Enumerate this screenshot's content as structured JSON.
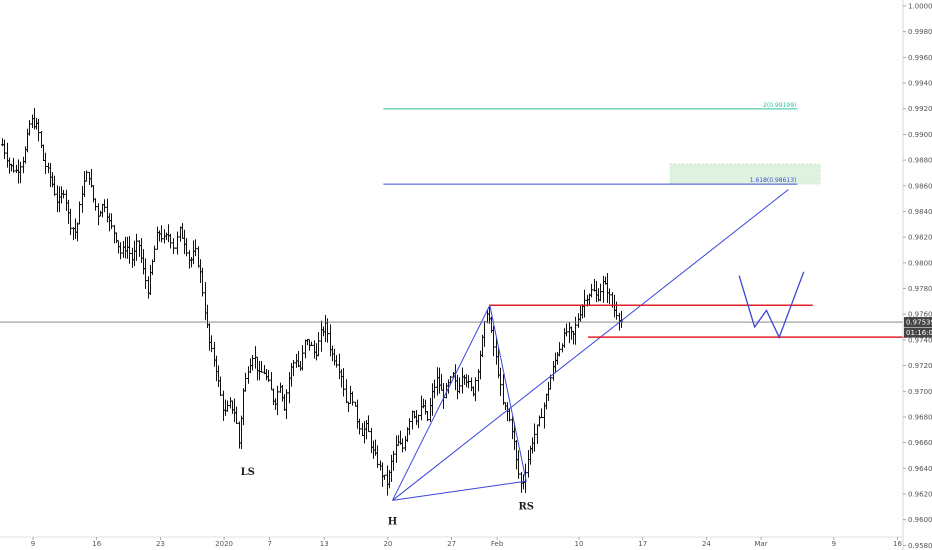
{
  "chart_data": {
    "type": "ohlc",
    "y_axis": {
      "range": [
        0.9573,
        1.0004
      ],
      "ticks": [
        {
          "value": 1.0,
          "label": "1.00000"
        },
        {
          "value": 0.998,
          "label": "0.99800"
        },
        {
          "value": 0.996,
          "label": "0.99600"
        },
        {
          "value": 0.994,
          "label": "0.99400"
        },
        {
          "value": 0.992,
          "label": "0.99200"
        },
        {
          "value": 0.99,
          "label": "0.99000"
        },
        {
          "value": 0.988,
          "label": "0.98800"
        },
        {
          "value": 0.986,
          "label": "0.98600"
        },
        {
          "value": 0.984,
          "label": "0.98400"
        },
        {
          "value": 0.982,
          "label": "0.98200"
        },
        {
          "value": 0.98,
          "label": "0.98000"
        },
        {
          "value": 0.978,
          "label": "0.97800"
        },
        {
          "value": 0.976,
          "label": "0.97600"
        },
        {
          "value": 0.974,
          "label": "0.97400"
        },
        {
          "value": 0.972,
          "label": "0.97200"
        },
        {
          "value": 0.97,
          "label": "0.97000"
        },
        {
          "value": 0.968,
          "label": "0.96800"
        },
        {
          "value": 0.966,
          "label": "0.96600"
        },
        {
          "value": 0.964,
          "label": "0.96400"
        },
        {
          "value": 0.962,
          "label": "0.96200"
        },
        {
          "value": 0.96,
          "label": "0.96000"
        },
        {
          "value": 0.958,
          "label": "0.95800"
        }
      ]
    },
    "x_axis": {
      "ticks": [
        {
          "label": "9",
          "t": 0
        },
        {
          "label": "16",
          "t": 7
        },
        {
          "label": "23",
          "t": 14
        },
        {
          "label": "2020",
          "t": 21
        },
        {
          "label": "7",
          "t": 26
        },
        {
          "label": "13",
          "t": 32
        },
        {
          "label": "20",
          "t": 39
        },
        {
          "label": "27",
          "t": 46
        },
        {
          "label": "Feb",
          "t": 51
        },
        {
          "label": "10",
          "t": 60
        },
        {
          "label": "17",
          "t": 67
        },
        {
          "label": "24",
          "t": 74
        },
        {
          "label": "Mar",
          "t": 80
        },
        {
          "label": "9",
          "t": 88
        },
        {
          "label": "16",
          "t": 95
        }
      ]
    },
    "price_path": [
      [
        -3.4,
        0.9892
      ],
      [
        -2.6,
        0.9876
      ],
      [
        -1.8,
        0.9871
      ],
      [
        -1.0,
        0.9883
      ],
      [
        -0.3,
        0.9912
      ],
      [
        0.5,
        0.9905
      ],
      [
        1.1,
        0.988
      ],
      [
        2.0,
        0.9864
      ],
      [
        2.7,
        0.9846
      ],
      [
        3.4,
        0.9857
      ],
      [
        4.0,
        0.9831
      ],
      [
        4.7,
        0.9823
      ],
      [
        5.4,
        0.9858
      ],
      [
        6.0,
        0.9872
      ],
      [
        6.5,
        0.9852
      ],
      [
        7.1,
        0.9838
      ],
      [
        7.8,
        0.9847
      ],
      [
        8.4,
        0.983
      ],
      [
        9.0,
        0.9822
      ],
      [
        9.6,
        0.9808
      ],
      [
        10.3,
        0.9813
      ],
      [
        10.9,
        0.9802
      ],
      [
        11.5,
        0.9818
      ],
      [
        12.0,
        0.9797
      ],
      [
        12.6,
        0.9779
      ],
      [
        13.1,
        0.98
      ],
      [
        13.7,
        0.9825
      ],
      [
        14.3,
        0.9818
      ],
      [
        14.9,
        0.9822
      ],
      [
        15.5,
        0.981
      ],
      [
        16.1,
        0.9825
      ],
      [
        16.7,
        0.9815
      ],
      [
        17.2,
        0.98
      ],
      [
        17.8,
        0.981
      ],
      [
        18.4,
        0.979
      ],
      [
        18.9,
        0.976
      ],
      [
        19.4,
        0.9735
      ],
      [
        20.0,
        0.9722
      ],
      [
        20.5,
        0.97
      ],
      [
        21.0,
        0.9682
      ],
      [
        21.6,
        0.969
      ],
      [
        22.2,
        0.9683
      ],
      [
        22.6,
        0.966
      ],
      [
        23.1,
        0.97
      ],
      [
        23.6,
        0.9718
      ],
      [
        24.2,
        0.973
      ],
      [
        24.8,
        0.9712
      ],
      [
        25.3,
        0.9716
      ],
      [
        25.9,
        0.9705
      ],
      [
        26.5,
        0.969
      ],
      [
        27.1,
        0.9706
      ],
      [
        27.6,
        0.9688
      ],
      [
        28.2,
        0.9715
      ],
      [
        28.8,
        0.9726
      ],
      [
        29.3,
        0.9716
      ],
      [
        29.9,
        0.974
      ],
      [
        30.5,
        0.9736
      ],
      [
        31.0,
        0.9728
      ],
      [
        31.6,
        0.9745
      ],
      [
        32.2,
        0.9752
      ],
      [
        32.7,
        0.973
      ],
      [
        33.3,
        0.9724
      ],
      [
        33.9,
        0.9712
      ],
      [
        34.4,
        0.969
      ],
      [
        35.0,
        0.9698
      ],
      [
        35.5,
        0.968
      ],
      [
        36.1,
        0.9668
      ],
      [
        36.7,
        0.9673
      ],
      [
        37.2,
        0.9655
      ],
      [
        37.8,
        0.9646
      ],
      [
        38.3,
        0.9636
      ],
      [
        38.9,
        0.9628
      ],
      [
        39.4,
        0.9646
      ],
      [
        40.0,
        0.966
      ],
      [
        40.6,
        0.9656
      ],
      [
        41.1,
        0.9672
      ],
      [
        41.6,
        0.9685
      ],
      [
        42.2,
        0.9678
      ],
      [
        42.8,
        0.969
      ],
      [
        43.3,
        0.9676
      ],
      [
        43.9,
        0.97
      ],
      [
        44.4,
        0.971
      ],
      [
        45.0,
        0.9696
      ],
      [
        45.6,
        0.9705
      ],
      [
        46.1,
        0.9712
      ],
      [
        46.6,
        0.97
      ],
      [
        47.2,
        0.9716
      ],
      [
        47.8,
        0.9706
      ],
      [
        48.3,
        0.9698
      ],
      [
        48.9,
        0.972
      ],
      [
        49.4,
        0.9742
      ],
      [
        49.9,
        0.9765
      ],
      [
        50.5,
        0.9738
      ],
      [
        51.0,
        0.972
      ],
      [
        51.6,
        0.969
      ],
      [
        52.1,
        0.9684
      ],
      [
        52.7,
        0.9668
      ],
      [
        53.2,
        0.964
      ],
      [
        53.7,
        0.9625
      ],
      [
        54.3,
        0.9646
      ],
      [
        54.9,
        0.9663
      ],
      [
        55.4,
        0.9672
      ],
      [
        56.0,
        0.9686
      ],
      [
        56.5,
        0.97
      ],
      [
        57.0,
        0.9715
      ],
      [
        57.6,
        0.973
      ],
      [
        58.2,
        0.974
      ],
      [
        58.7,
        0.9748
      ],
      [
        59.3,
        0.9742
      ],
      [
        59.8,
        0.9756
      ],
      [
        60.4,
        0.9768
      ],
      [
        60.9,
        0.9775
      ],
      [
        61.5,
        0.9779
      ],
      [
        62.0,
        0.9772
      ],
      [
        62.6,
        0.9784
      ],
      [
        63.1,
        0.9779
      ],
      [
        63.7,
        0.9765
      ],
      [
        64.2,
        0.976
      ],
      [
        64.8,
        0.9752
      ]
    ],
    "annotations": {
      "head_and_shoulders": {
        "left_shoulder": {
          "label": "LS",
          "t": 23.6,
          "value": 0.9652
        },
        "head": {
          "label": "H",
          "t": 39.5,
          "value": 0.96135
        },
        "right_shoulder": {
          "label": "RS",
          "t": 54.2,
          "value": 0.9625
        }
      },
      "triangle_points": [
        [
          39.5,
          0.9615
        ],
        [
          50.2,
          0.9767
        ],
        [
          54.2,
          0.963
        ],
        [
          39.5,
          0.9615
        ]
      ],
      "neckline": {
        "from": [
          39.5,
          0.9615
        ],
        "to": [
          83.0,
          0.9857
        ]
      },
      "resistance_line": {
        "from": [
          50.2,
          0.9767
        ],
        "to": [
          85.7,
          0.9767
        ],
        "color": "#e0202a"
      },
      "support_line": {
        "from": [
          61.0,
          0.97422
        ],
        "to": [
          96.0,
          0.97422
        ],
        "color": "#e0202a"
      },
      "w_projection": [
        [
          77.6,
          0.979
        ],
        [
          79.3,
          0.975
        ],
        [
          80.6,
          0.9763
        ],
        [
          82.0,
          0.9742
        ],
        [
          84.7,
          0.9793
        ]
      ],
      "current_price_line": {
        "value": 0.97539,
        "color": "#777777"
      },
      "fib_levels": [
        {
          "label": "1.618(0.98613)",
          "value": 0.98613,
          "from_t": 38.5,
          "to_t": 84.0,
          "color": "#3b4fd0"
        },
        {
          "label": "2(0.99199)",
          "value": 0.99199,
          "from_t": 38.5,
          "to_t": 84.0,
          "color": "#2bbf9a"
        }
      ],
      "target_box": {
        "from_t": 70.0,
        "to_t": 86.5,
        "top": 0.9877,
        "bottom": 0.98613,
        "color": "#dff2df"
      }
    },
    "price_tags": [
      {
        "label": "0.97539",
        "value": 0.97539,
        "bg": "#444444",
        "fg": "#ffffff"
      },
      {
        "label": "01:16:07",
        "value": 0.97457,
        "bg": "#444444",
        "fg": "#ffffff"
      }
    ],
    "colors": {
      "bars": "#111111",
      "pattern": "#3a45d8",
      "resistance": "#e0202a",
      "axis_text": "#555555"
    }
  }
}
